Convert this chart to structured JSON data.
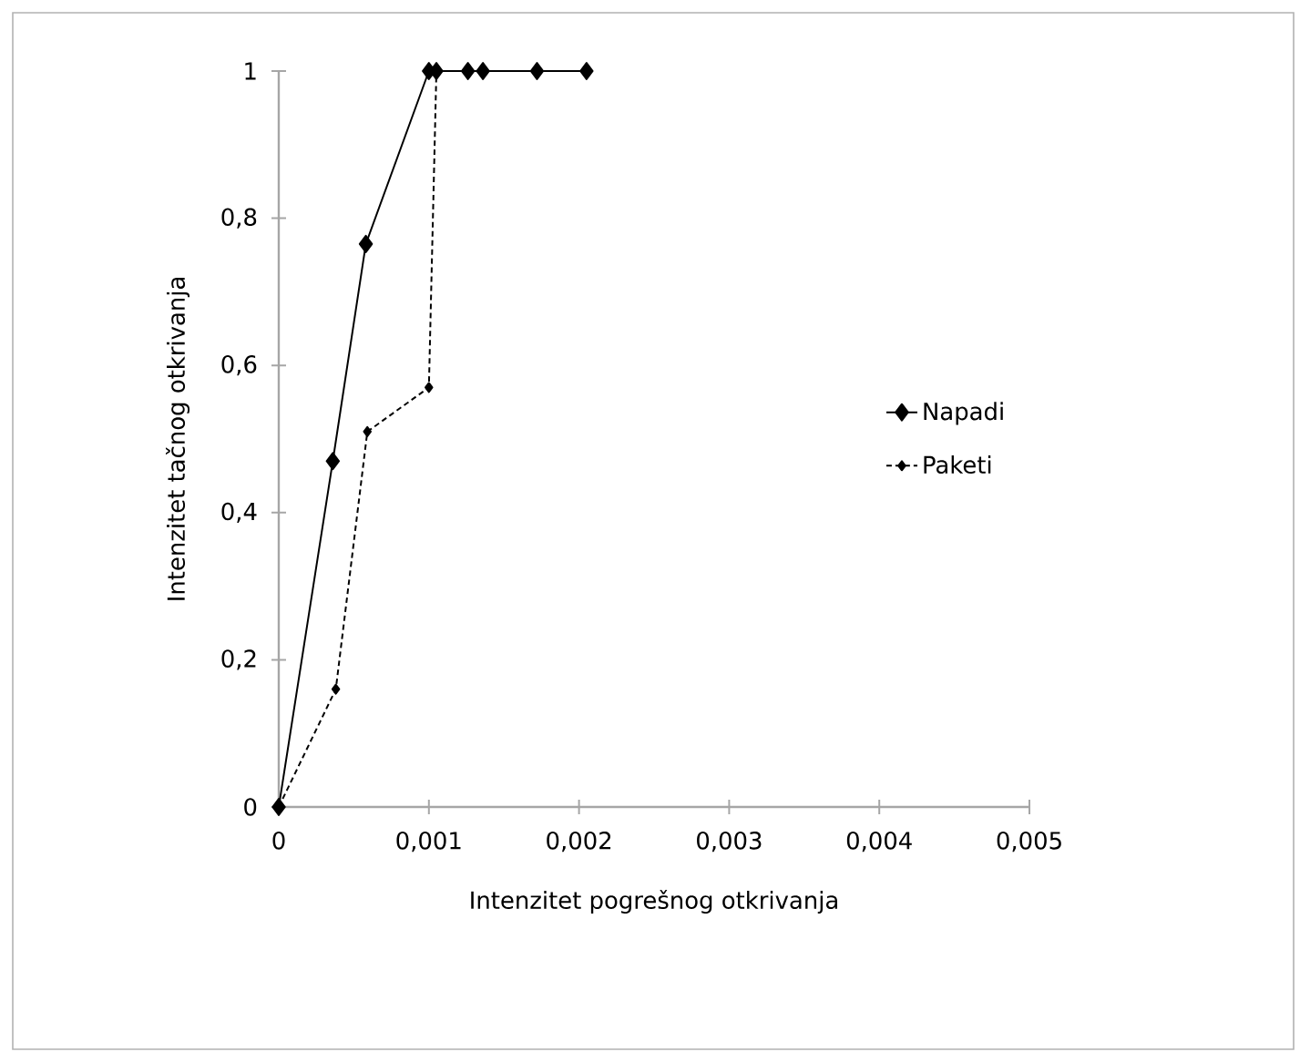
{
  "chart_data": {
    "type": "line",
    "xlabel": "Intenzitet pogrešnog otkrivanja",
    "ylabel": "Intenzitet tačnog otkrivanja",
    "xlim": [
      0,
      0.005
    ],
    "ylim": [
      0,
      1
    ],
    "xticks": [
      {
        "value": 0,
        "label": "0"
      },
      {
        "value": 0.001,
        "label": "0,001"
      },
      {
        "value": 0.002,
        "label": "0,002"
      },
      {
        "value": 0.003,
        "label": "0,003"
      },
      {
        "value": 0.004,
        "label": "0,004"
      },
      {
        "value": 0.005,
        "label": "0,005"
      }
    ],
    "yticks": [
      {
        "value": 0,
        "label": "0"
      },
      {
        "value": 0.2,
        "label": "0,2"
      },
      {
        "value": 0.4,
        "label": "0,4"
      },
      {
        "value": 0.6,
        "label": "0,6"
      },
      {
        "value": 0.8,
        "label": "0,8"
      },
      {
        "value": 1,
        "label": "1"
      }
    ],
    "grid": false,
    "legend": "right",
    "marker": "diamond",
    "series": [
      {
        "name": "Napadi",
        "color": "#000000",
        "line_style": "solid",
        "x": [
          0,
          0.00036,
          0.00058,
          0.001,
          0.00105,
          0.00126,
          0.00136,
          0.00172,
          0.00205
        ],
        "values": [
          0,
          0.47,
          0.765,
          1,
          1,
          1,
          1,
          1,
          1
        ]
      },
      {
        "name": "Paketi",
        "color": "#000000",
        "line_style": "dashed",
        "x": [
          0,
          0.00038,
          0.00059,
          0.001,
          0.00105
        ],
        "values": [
          0,
          0.16,
          0.51,
          0.57,
          1
        ]
      }
    ]
  }
}
